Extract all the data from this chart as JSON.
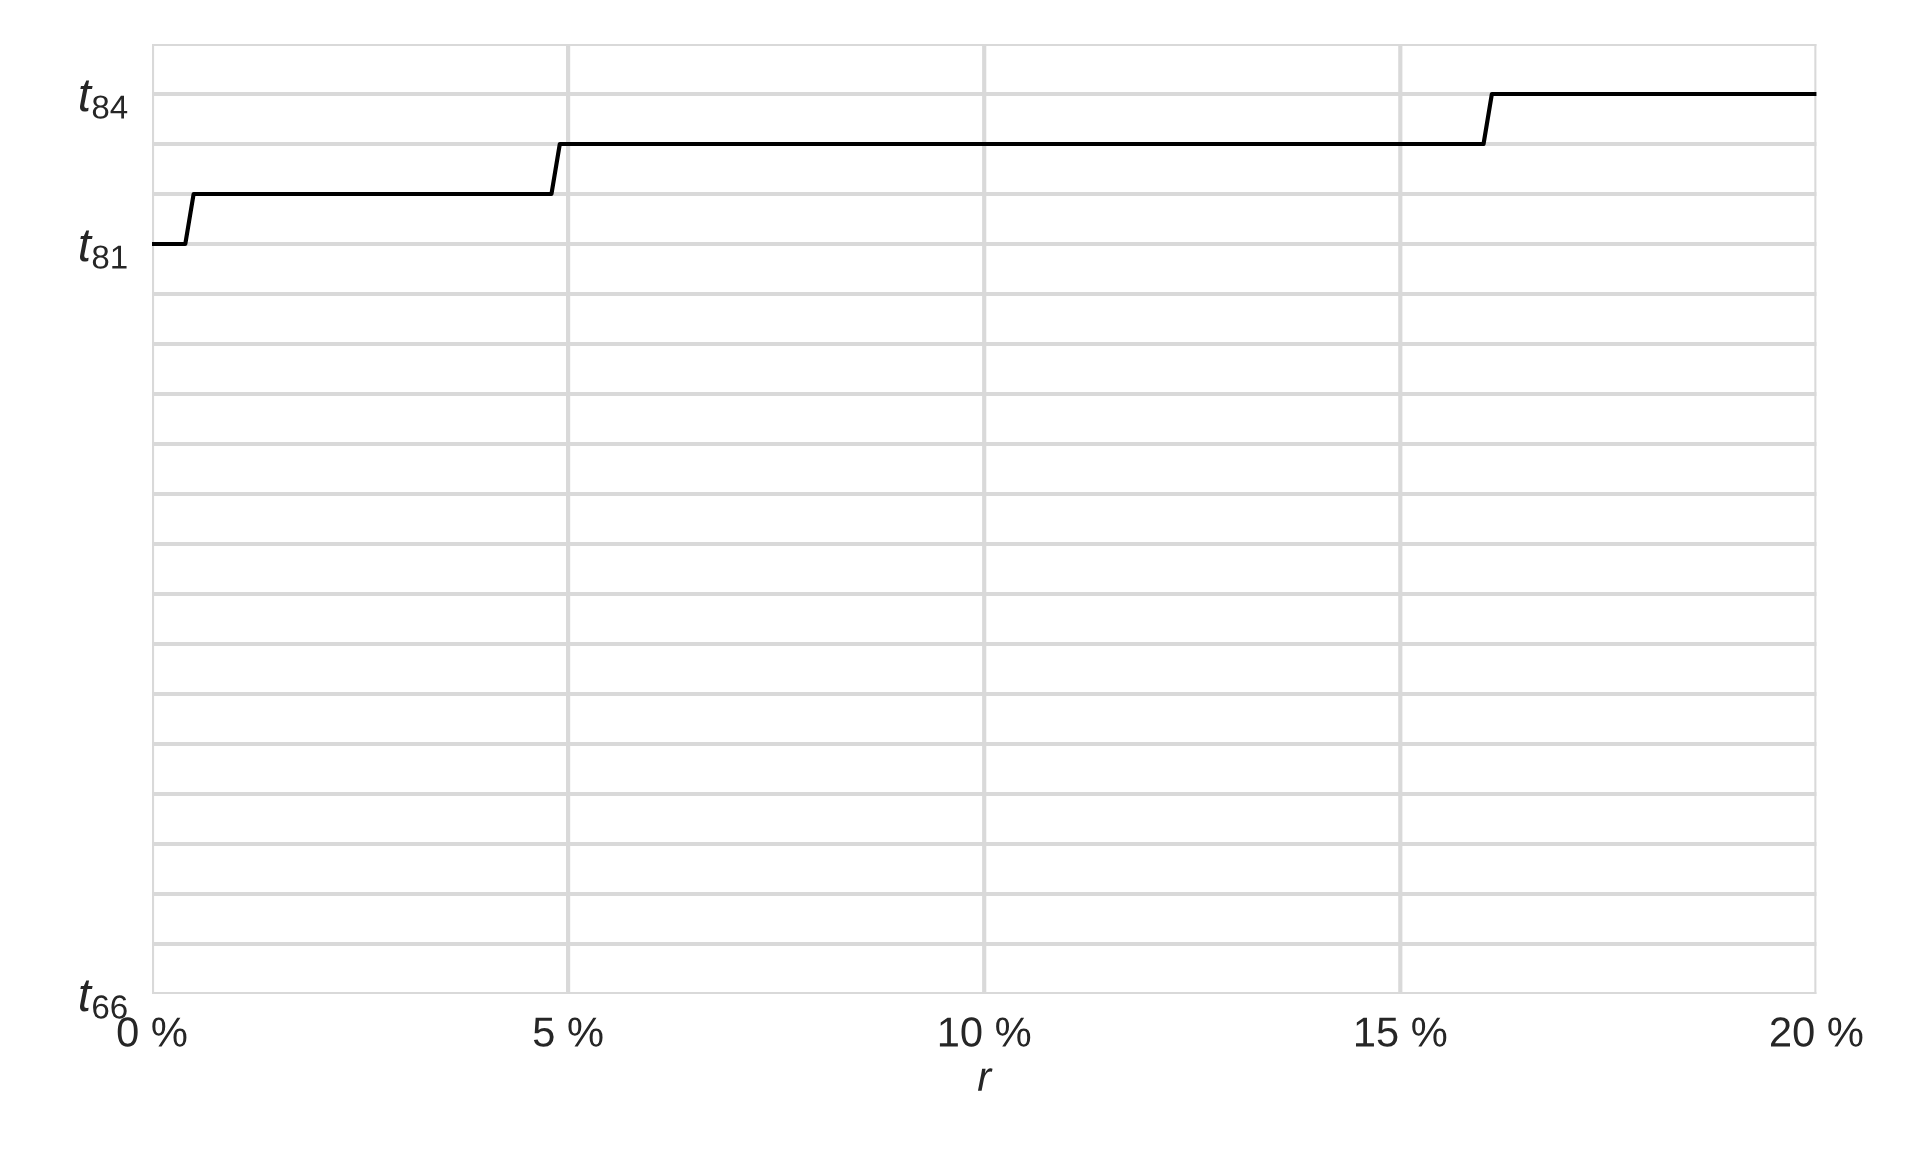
{
  "chart_data": {
    "type": "line",
    "xlabel": "r",
    "x": [
      0,
      0.4,
      0.5,
      4.8,
      4.9,
      16.0,
      16.1,
      20
    ],
    "series": [
      {
        "color": "#000000",
        "values": [
          81,
          81,
          82,
          82,
          83,
          83,
          84,
          84
        ]
      }
    ],
    "xlim": [
      0,
      20
    ],
    "xticks": [
      {
        "value": 0,
        "label": "0 %"
      },
      {
        "value": 5,
        "label": "5 %"
      },
      {
        "value": 10,
        "label": "10 %"
      },
      {
        "value": 15,
        "label": "15 %"
      },
      {
        "value": 20,
        "label": "20 %"
      }
    ],
    "ylim": [
      66,
      85
    ],
    "yticks": [
      {
        "value": 66,
        "label": "t$_{66}$"
      },
      {
        "value": 67,
        "label": null
      },
      {
        "value": 68,
        "label": null
      },
      {
        "value": 69,
        "label": null
      },
      {
        "value": 70,
        "label": null
      },
      {
        "value": 71,
        "label": null
      },
      {
        "value": 72,
        "label": null
      },
      {
        "value": 73,
        "label": null
      },
      {
        "value": 74,
        "label": null
      },
      {
        "value": 75,
        "label": null
      },
      {
        "value": 76,
        "label": null
      },
      {
        "value": 77,
        "label": null
      },
      {
        "value": 78,
        "label": null
      },
      {
        "value": 79,
        "label": null
      },
      {
        "value": 80,
        "label": null
      },
      {
        "value": 81,
        "label": "t$_{81}$"
      },
      {
        "value": 82,
        "label": null
      },
      {
        "value": 83,
        "label": null
      },
      {
        "value": 84,
        "label": "t$_{84}$"
      },
      {
        "value": 85,
        "label": null
      }
    ],
    "grid": true,
    "marker": "none",
    "line_style": "solid"
  }
}
